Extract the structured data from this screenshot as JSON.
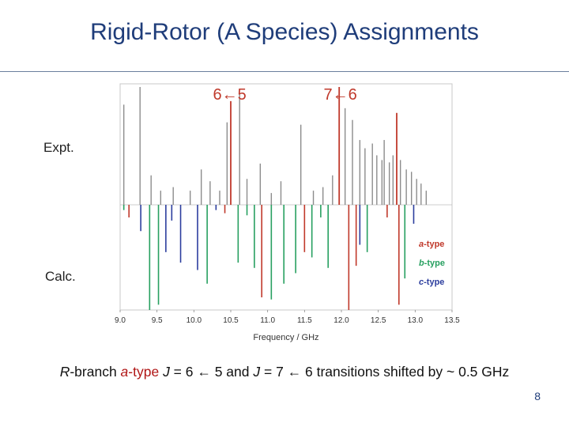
{
  "slide": {
    "title": "Rigid-Rotor (A Species) Assignments",
    "page_number": "8"
  },
  "caption": {
    "r": "R",
    "branch": "-branch ",
    "a_italic": "a",
    "type_dash": "-type",
    "j1": "J",
    "t1": " = 6 ← 5 and ",
    "j2": "J",
    "t2": " = 7 ← 6 transitions shifted by ~ 0.5 GHz"
  },
  "chart_data": {
    "type": "stick-spectrum",
    "xlabel": "Frequency / GHz",
    "xlim": [
      9.0,
      13.5
    ],
    "xticks": [
      "9.0",
      "9.5",
      "10.0",
      "10.5",
      "11.0",
      "11.5",
      "12.0",
      "12.5",
      "13.0",
      "13.5"
    ],
    "panel_labels": {
      "top": "Expt.",
      "bottom": "Calc."
    },
    "annotations": [
      {
        "text": "6←5",
        "x": 10.55
      },
      {
        "text": "7←6",
        "x": 12.05
      }
    ],
    "legend": {
      "position": "lower-right",
      "entries": [
        {
          "label": "a-type",
          "color": "#c0392b"
        },
        {
          "label": "b-type",
          "color": "#27a060"
        },
        {
          "label": "c-type",
          "color": "#2c3e9e"
        }
      ]
    },
    "colors": {
      "expt": "#8c8c8c",
      "a": "#c0392b",
      "b": "#27a060",
      "c": "#2c3e9e"
    },
    "expt_lines": [
      {
        "f": 9.05,
        "i": 0.85
      },
      {
        "f": 9.27,
        "i": 1.0
      },
      {
        "f": 9.42,
        "i": 0.25
      },
      {
        "f": 9.55,
        "i": 0.12
      },
      {
        "f": 9.72,
        "i": 0.15
      },
      {
        "f": 9.95,
        "i": 0.12
      },
      {
        "f": 10.1,
        "i": 0.3
      },
      {
        "f": 10.22,
        "i": 0.2
      },
      {
        "f": 10.35,
        "i": 0.12
      },
      {
        "f": 10.45,
        "i": 0.7
      },
      {
        "f": 10.5,
        "i": 0.88,
        "a": true
      },
      {
        "f": 10.62,
        "i": 0.95
      },
      {
        "f": 10.72,
        "i": 0.22
      },
      {
        "f": 10.9,
        "i": 0.35
      },
      {
        "f": 11.05,
        "i": 0.1
      },
      {
        "f": 11.18,
        "i": 0.2
      },
      {
        "f": 11.45,
        "i": 0.68
      },
      {
        "f": 11.62,
        "i": 0.12
      },
      {
        "f": 11.75,
        "i": 0.15
      },
      {
        "f": 11.88,
        "i": 0.25
      },
      {
        "f": 11.97,
        "i": 1.0,
        "a": true
      },
      {
        "f": 12.05,
        "i": 0.82
      },
      {
        "f": 12.15,
        "i": 0.72
      },
      {
        "f": 12.25,
        "i": 0.55
      },
      {
        "f": 12.32,
        "i": 0.48
      },
      {
        "f": 12.42,
        "i": 0.52
      },
      {
        "f": 12.48,
        "i": 0.42
      },
      {
        "f": 12.55,
        "i": 0.38
      },
      {
        "f": 12.58,
        "i": 0.55
      },
      {
        "f": 12.65,
        "i": 0.36
      },
      {
        "f": 12.7,
        "i": 0.42
      },
      {
        "f": 12.75,
        "i": 0.78,
        "a": true
      },
      {
        "f": 12.8,
        "i": 0.38
      },
      {
        "f": 12.88,
        "i": 0.3
      },
      {
        "f": 12.95,
        "i": 0.28
      },
      {
        "f": 13.02,
        "i": 0.22
      },
      {
        "f": 13.08,
        "i": 0.18
      },
      {
        "f": 13.15,
        "i": 0.12
      }
    ],
    "calc_lines": [
      {
        "f": 9.05,
        "i": 0.05,
        "t": "b"
      },
      {
        "f": 9.12,
        "i": 0.12,
        "t": "a"
      },
      {
        "f": 9.28,
        "i": 0.25,
        "t": "c"
      },
      {
        "f": 9.4,
        "i": 1.0,
        "t": "b"
      },
      {
        "f": 9.52,
        "i": 0.95,
        "t": "b"
      },
      {
        "f": 9.62,
        "i": 0.45,
        "t": "c"
      },
      {
        "f": 9.7,
        "i": 0.15,
        "t": "c"
      },
      {
        "f": 9.82,
        "i": 0.55,
        "t": "c"
      },
      {
        "f": 10.05,
        "i": 0.62,
        "t": "c"
      },
      {
        "f": 10.18,
        "i": 0.75,
        "t": "b"
      },
      {
        "f": 10.3,
        "i": 0.05,
        "t": "c"
      },
      {
        "f": 10.42,
        "i": 0.08,
        "t": "a"
      },
      {
        "f": 10.6,
        "i": 0.55,
        "t": "b"
      },
      {
        "f": 10.72,
        "i": 0.1,
        "t": "b"
      },
      {
        "f": 10.82,
        "i": 0.6,
        "t": "b"
      },
      {
        "f": 10.92,
        "i": 0.88,
        "t": "a"
      },
      {
        "f": 11.05,
        "i": 0.9,
        "t": "b"
      },
      {
        "f": 11.22,
        "i": 0.75,
        "t": "b"
      },
      {
        "f": 11.38,
        "i": 0.65,
        "t": "b"
      },
      {
        "f": 11.5,
        "i": 0.45,
        "t": "a"
      },
      {
        "f": 11.6,
        "i": 0.5,
        "t": "b"
      },
      {
        "f": 11.72,
        "i": 0.12,
        "t": "b"
      },
      {
        "f": 11.82,
        "i": 0.6,
        "t": "b"
      },
      {
        "f": 12.1,
        "i": 1.0,
        "t": "a"
      },
      {
        "f": 12.2,
        "i": 0.58,
        "t": "a"
      },
      {
        "f": 12.25,
        "i": 0.38,
        "t": "c"
      },
      {
        "f": 12.35,
        "i": 0.45,
        "t": "b"
      },
      {
        "f": 12.62,
        "i": 0.12,
        "t": "a"
      },
      {
        "f": 12.78,
        "i": 0.95,
        "t": "a"
      },
      {
        "f": 12.86,
        "i": 0.7,
        "t": "b"
      },
      {
        "f": 12.98,
        "i": 0.18,
        "t": "c"
      }
    ]
  }
}
